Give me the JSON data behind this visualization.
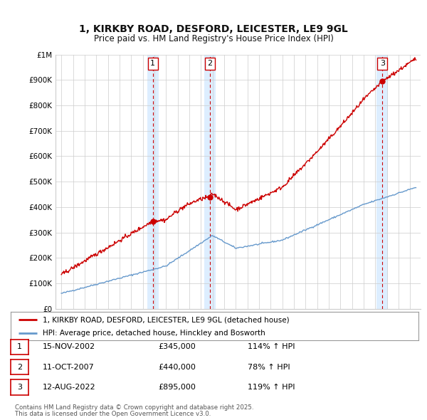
{
  "title": "1, KIRKBY ROAD, DESFORD, LEICESTER, LE9 9GL",
  "subtitle": "Price paid vs. HM Land Registry's House Price Index (HPI)",
  "ylim": [
    0,
    1000000
  ],
  "yticks": [
    0,
    100000,
    200000,
    300000,
    400000,
    500000,
    600000,
    700000,
    800000,
    900000,
    1000000
  ],
  "ytick_labels": [
    "£0",
    "£100K",
    "£200K",
    "£300K",
    "£400K",
    "£500K",
    "£600K",
    "£700K",
    "£800K",
    "£900K",
    "£1M"
  ],
  "sale_prices": [
    345000,
    440000,
    895000
  ],
  "sale_labels": [
    "1",
    "2",
    "3"
  ],
  "legend_house": "1, KIRKBY ROAD, DESFORD, LEICESTER, LE9 9GL (detached house)",
  "legend_hpi": "HPI: Average price, detached house, Hinckley and Bosworth",
  "table_rows": [
    {
      "num": "1",
      "date": "15-NOV-2002",
      "price": "£345,000",
      "change": "114% ↑ HPI"
    },
    {
      "num": "2",
      "date": "11-OCT-2007",
      "price": "£440,000",
      "change": "78% ↑ HPI"
    },
    {
      "num": "3",
      "date": "12-AUG-2022",
      "price": "£895,000",
      "change": "119% ↑ HPI"
    }
  ],
  "footnote1": "Contains HM Land Registry data © Crown copyright and database right 2025.",
  "footnote2": "This data is licensed under the Open Government Licence v3.0.",
  "red_color": "#cc0000",
  "blue_color": "#6699cc",
  "shade_color": "#ddeeff",
  "grid_color": "#cccccc",
  "background_color": "#ffffff"
}
